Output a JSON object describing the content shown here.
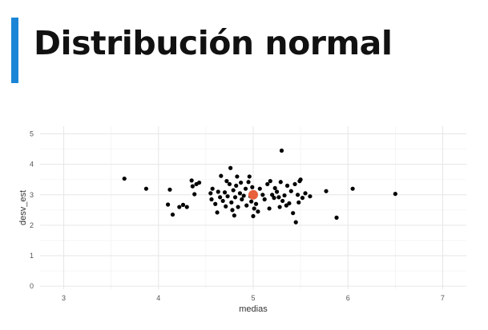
{
  "slide": {
    "title": "Distribución normal"
  },
  "colors": {
    "accent_bar": "#1a85d6",
    "points": "#000000",
    "highlight": "#e8603c",
    "grid_major": "#e6e6e6",
    "grid_minor": "#f3f3f3"
  },
  "chart_data": {
    "type": "scatter",
    "xlabel": "medias",
    "ylabel": "desv_est",
    "xlim": [
      2.75,
      7.25
    ],
    "ylim": [
      -0.1,
      5.25
    ],
    "xticks": [
      3,
      4,
      5,
      6,
      7
    ],
    "yticks": [
      0,
      1,
      2,
      3,
      4,
      5
    ],
    "grid": true,
    "series": [
      {
        "points": [
          [
            3.64,
            3.53
          ],
          [
            3.87,
            3.2
          ],
          [
            4.1,
            2.68
          ],
          [
            4.12,
            3.17
          ],
          [
            4.15,
            2.35
          ],
          [
            4.22,
            2.6
          ],
          [
            4.26,
            2.67
          ],
          [
            4.3,
            2.6
          ],
          [
            4.35,
            3.47
          ],
          [
            4.36,
            3.28
          ],
          [
            4.38,
            3.02
          ],
          [
            4.4,
            3.35
          ],
          [
            4.43,
            3.4
          ],
          [
            4.55,
            3.05
          ],
          [
            4.56,
            2.85
          ],
          [
            4.57,
            3.2
          ],
          [
            4.6,
            2.7
          ],
          [
            4.62,
            2.42
          ],
          [
            4.63,
            3.1
          ],
          [
            4.65,
            2.92
          ],
          [
            4.66,
            3.62
          ],
          [
            4.68,
            2.8
          ],
          [
            4.7,
            3.08
          ],
          [
            4.71,
            2.62
          ],
          [
            4.72,
            3.45
          ],
          [
            4.73,
            2.95
          ],
          [
            4.75,
            3.35
          ],
          [
            4.76,
            3.88
          ],
          [
            4.77,
            2.75
          ],
          [
            4.78,
            2.5
          ],
          [
            4.79,
            3.15
          ],
          [
            4.8,
            2.32
          ],
          [
            4.81,
            2.92
          ],
          [
            4.82,
            3.3
          ],
          [
            4.83,
            3.6
          ],
          [
            4.84,
            2.6
          ],
          [
            4.86,
            3.05
          ],
          [
            4.87,
            3.4
          ],
          [
            4.88,
            2.85
          ],
          [
            4.9,
            2.97
          ],
          [
            4.92,
            3.2
          ],
          [
            4.93,
            2.65
          ],
          [
            4.95,
            3.42
          ],
          [
            4.96,
            3.6
          ],
          [
            4.97,
            2.95
          ],
          [
            4.98,
            2.78
          ],
          [
            4.99,
            3.25
          ],
          [
            5.0,
            2.3
          ],
          [
            5.01,
            2.55
          ],
          [
            5.02,
            3.05
          ],
          [
            5.03,
            2.7
          ],
          [
            5.05,
            2.45
          ],
          [
            5.07,
            3.2
          ],
          [
            5.1,
            3.0
          ],
          [
            5.12,
            2.85
          ],
          [
            5.15,
            3.35
          ],
          [
            5.17,
            2.55
          ],
          [
            5.18,
            3.45
          ],
          [
            5.2,
            3.0
          ],
          [
            5.22,
            2.9
          ],
          [
            5.23,
            3.22
          ],
          [
            5.25,
            3.1
          ],
          [
            5.27,
            2.92
          ],
          [
            5.28,
            2.6
          ],
          [
            5.29,
            3.42
          ],
          [
            5.3,
            4.45
          ],
          [
            5.31,
            2.8
          ],
          [
            5.33,
            2.98
          ],
          [
            5.35,
            2.65
          ],
          [
            5.36,
            3.3
          ],
          [
            5.38,
            2.72
          ],
          [
            5.4,
            3.12
          ],
          [
            5.42,
            2.4
          ],
          [
            5.44,
            3.35
          ],
          [
            5.45,
            2.1
          ],
          [
            5.47,
            3.0
          ],
          [
            5.48,
            2.75
          ],
          [
            5.49,
            3.45
          ],
          [
            5.5,
            3.5
          ],
          [
            5.52,
            2.9
          ],
          [
            5.55,
            3.05
          ],
          [
            5.6,
            2.95
          ],
          [
            5.77,
            3.12
          ],
          [
            5.88,
            2.25
          ],
          [
            6.05,
            3.2
          ],
          [
            6.5,
            3.03
          ]
        ]
      },
      {
        "points": [
          [
            5.0,
            3.0
          ]
        ]
      }
    ]
  }
}
